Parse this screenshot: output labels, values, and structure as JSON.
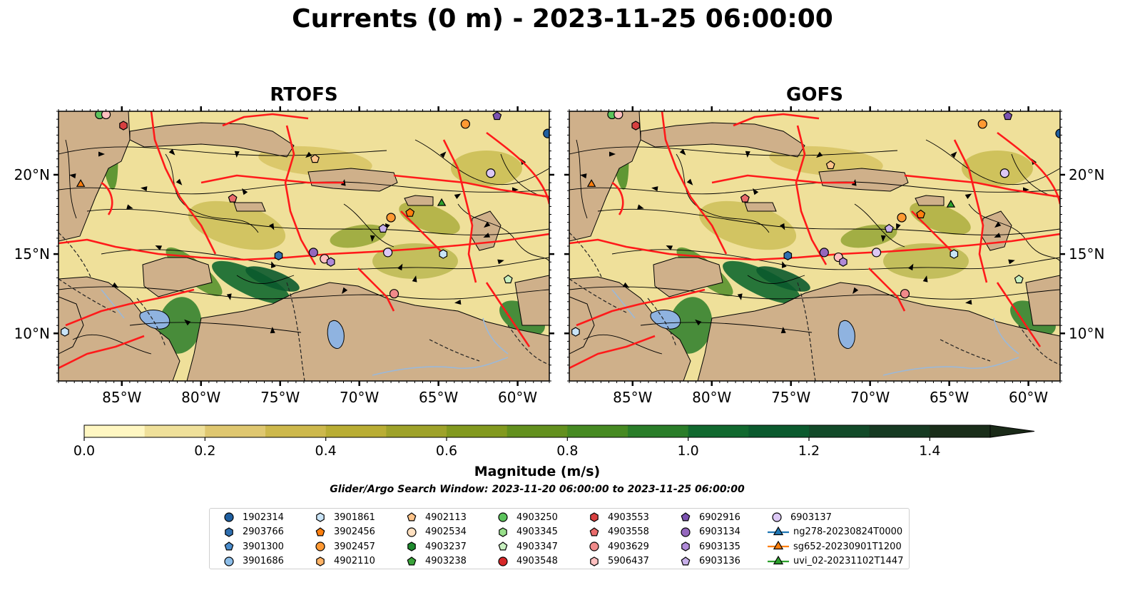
{
  "title": "Currents (0 m) - 2023-11-25 06:00:00",
  "panels": [
    {
      "id": "rtofs",
      "title": "RTOFS",
      "ylabels_side": "left"
    },
    {
      "id": "gofs",
      "title": "GOFS",
      "ylabels_side": "right"
    }
  ],
  "map_extent": {
    "lon": [
      -89,
      -58
    ],
    "lat": [
      7,
      24
    ]
  },
  "lon_ticks": [
    {
      "lon": -85,
      "label": "85°W"
    },
    {
      "lon": -80,
      "label": "80°W"
    },
    {
      "lon": -75,
      "label": "75°W"
    },
    {
      "lon": -70,
      "label": "70°W"
    },
    {
      "lon": -65,
      "label": "65°W"
    },
    {
      "lon": -60,
      "label": "60°W"
    }
  ],
  "lat_ticks": [
    {
      "lat": 20,
      "label": "20°N"
    },
    {
      "lat": 15,
      "label": "15°N"
    },
    {
      "lat": 10,
      "label": "10°N"
    }
  ],
  "colorbar": {
    "label": "Magnitude (m/s)",
    "min": 0.0,
    "max": 1.5,
    "extend": "max",
    "ticks": [
      {
        "value": 0.0,
        "label": "0.0"
      },
      {
        "value": 0.2,
        "label": "0.2"
      },
      {
        "value": 0.4,
        "label": "0.4"
      },
      {
        "value": 0.6,
        "label": "0.6"
      },
      {
        "value": 0.8,
        "label": "0.8"
      },
      {
        "value": 1.0,
        "label": "1.0"
      },
      {
        "value": 1.2,
        "label": "1.2"
      },
      {
        "value": 1.4,
        "label": "1.4"
      }
    ],
    "colors": [
      "#fff7c2",
      "#efe09a",
      "#dfc770",
      "#cdb84c",
      "#b9ad34",
      "#9ea22a",
      "#82991f",
      "#63901e",
      "#468a22",
      "#2a7d29",
      "#11692f",
      "#0b5a2e",
      "#124a29",
      "#163a22",
      "#1a2e1a"
    ],
    "extend_color": "#1a2a18"
  },
  "search_window_text": "Glider/Argo Search Window: 2023-11-20 06:00:00 to 2023-11-25 06:00:00",
  "colors": {
    "land": "#cfb08a",
    "track": "#ff1a1a",
    "lake": "#8fb3e0",
    "river": "#9bb8d8",
    "border": "#222222"
  },
  "legend": [
    {
      "label": "1902314",
      "marker": "circle",
      "color": "#1f5fa0"
    },
    {
      "label": "2903766",
      "marker": "hexagon",
      "color": "#2f6fb0"
    },
    {
      "label": "3901300",
      "marker": "pentagon",
      "color": "#4a8ccc"
    },
    {
      "label": "3901686",
      "marker": "circle",
      "color": "#8cbde8"
    },
    {
      "label": "3901861",
      "marker": "hexagon",
      "color": "#c9e4f7"
    },
    {
      "label": "3902456",
      "marker": "pentagon",
      "color": "#ff7f0e"
    },
    {
      "label": "3902457",
      "marker": "circle",
      "color": "#ff9933"
    },
    {
      "label": "4902110",
      "marker": "hexagon",
      "color": "#ffb366"
    },
    {
      "label": "4902113",
      "marker": "pentagon",
      "color": "#ffc48a"
    },
    {
      "label": "4902534",
      "marker": "circle",
      "color": "#ffe0c0"
    },
    {
      "label": "4903237",
      "marker": "hexagon",
      "color": "#1e8a2e"
    },
    {
      "label": "4903238",
      "marker": "pentagon",
      "color": "#3aa43a"
    },
    {
      "label": "4903250",
      "marker": "circle",
      "color": "#5cc35c"
    },
    {
      "label": "4903345",
      "marker": "hexagon",
      "color": "#98df8a"
    },
    {
      "label": "4903347",
      "marker": "pentagon",
      "color": "#c8f0c0"
    },
    {
      "label": "4903548",
      "marker": "circle",
      "color": "#d62728"
    },
    {
      "label": "4903553",
      "marker": "hexagon",
      "color": "#d84040"
    },
    {
      "label": "4903558",
      "marker": "pentagon",
      "color": "#ea6b6b"
    },
    {
      "label": "4903629",
      "marker": "circle",
      "color": "#f08a8a"
    },
    {
      "label": "5906437",
      "marker": "hexagon",
      "color": "#ffc0c0"
    },
    {
      "label": "6902916",
      "marker": "pentagon",
      "color": "#7b52b0"
    },
    {
      "label": "6903134",
      "marker": "circle",
      "color": "#9467bd"
    },
    {
      "label": "6903135",
      "marker": "hexagon",
      "color": "#b08ad8"
    },
    {
      "label": "6903136",
      "marker": "pentagon",
      "color": "#c8b0ea"
    },
    {
      "label": "6903137",
      "marker": "circle",
      "color": "#dcc8f5"
    },
    {
      "label": "ng278-20230824T0000",
      "marker": "triangle",
      "color": "#1f77b4"
    },
    {
      "label": "sg652-20230901T1200",
      "marker": "triangle",
      "color": "#ff7f0e"
    },
    {
      "label": "uvi_02-20231102T1447",
      "marker": "triangle",
      "color": "#2ca02c"
    }
  ],
  "floats_rtofs": [
    {
      "lon": -86.4,
      "lat": 23.8,
      "marker": "circle",
      "color": "#5cc35c"
    },
    {
      "lon": -86.0,
      "lat": 23.8,
      "marker": "circle",
      "color": "#ffc0c0"
    },
    {
      "lon": -84.9,
      "lat": 23.1,
      "marker": "hexagon",
      "color": "#d84040"
    },
    {
      "lon": -87.6,
      "lat": 19.4,
      "marker": "triangle",
      "color": "#ff7f0e"
    },
    {
      "lon": -78.0,
      "lat": 18.5,
      "marker": "pentagon",
      "color": "#ea6b6b"
    },
    {
      "lon": -72.8,
      "lat": 21.0,
      "marker": "pentagon",
      "color": "#ffc48a"
    },
    {
      "lon": -63.3,
      "lat": 23.2,
      "marker": "circle",
      "color": "#ff9933"
    },
    {
      "lon": -61.3,
      "lat": 23.7,
      "marker": "pentagon",
      "color": "#7b52b0"
    },
    {
      "lon": -58.1,
      "lat": 22.6,
      "marker": "circle",
      "color": "#1f5fa0"
    },
    {
      "lon": -61.7,
      "lat": 20.1,
      "marker": "circle",
      "color": "#dcc8f5"
    },
    {
      "lon": -64.8,
      "lat": 18.2,
      "marker": "triangle",
      "color": "#2ca02c"
    },
    {
      "lon": -68.0,
      "lat": 17.3,
      "marker": "circle",
      "color": "#ff9933"
    },
    {
      "lon": -66.8,
      "lat": 17.6,
      "marker": "pentagon",
      "color": "#ff7f0e"
    },
    {
      "lon": -68.5,
      "lat": 16.6,
      "marker": "pentagon",
      "color": "#c8b0ea"
    },
    {
      "lon": -75.1,
      "lat": 14.9,
      "marker": "hexagon",
      "color": "#2f6fb0"
    },
    {
      "lon": -72.9,
      "lat": 15.1,
      "marker": "circle",
      "color": "#9467bd"
    },
    {
      "lon": -72.2,
      "lat": 14.7,
      "marker": "circle",
      "color": "#ffc0c0"
    },
    {
      "lon": -71.8,
      "lat": 14.5,
      "marker": "hexagon",
      "color": "#b08ad8"
    },
    {
      "lon": -68.2,
      "lat": 15.1,
      "marker": "circle",
      "color": "#dcc8f5"
    },
    {
      "lon": -64.7,
      "lat": 15.0,
      "marker": "hexagon",
      "color": "#c9e4f7"
    },
    {
      "lon": -60.6,
      "lat": 13.4,
      "marker": "pentagon",
      "color": "#c8f0c0"
    },
    {
      "lon": -67.8,
      "lat": 12.5,
      "marker": "circle",
      "color": "#f08a8a"
    },
    {
      "lon": -88.6,
      "lat": 10.1,
      "marker": "hexagon",
      "color": "#c9e4f7"
    }
  ],
  "floats_gofs": [
    {
      "lon": -86.3,
      "lat": 23.8,
      "marker": "circle",
      "color": "#5cc35c"
    },
    {
      "lon": -85.9,
      "lat": 23.8,
      "marker": "circle",
      "color": "#ffc0c0"
    },
    {
      "lon": -84.8,
      "lat": 23.1,
      "marker": "hexagon",
      "color": "#d84040"
    },
    {
      "lon": -87.6,
      "lat": 19.4,
      "marker": "triangle",
      "color": "#ff7f0e"
    },
    {
      "lon": -77.9,
      "lat": 18.5,
      "marker": "pentagon",
      "color": "#ea6b6b"
    },
    {
      "lon": -72.5,
      "lat": 20.6,
      "marker": "pentagon",
      "color": "#ffc48a"
    },
    {
      "lon": -62.9,
      "lat": 23.2,
      "marker": "circle",
      "color": "#ff9933"
    },
    {
      "lon": -61.3,
      "lat": 23.7,
      "marker": "pentagon",
      "color": "#7b52b0"
    },
    {
      "lon": -58.0,
      "lat": 22.6,
      "marker": "circle",
      "color": "#1f5fa0"
    },
    {
      "lon": -61.5,
      "lat": 20.1,
      "marker": "circle",
      "color": "#dcc8f5"
    },
    {
      "lon": -64.9,
      "lat": 18.1,
      "marker": "triangle",
      "color": "#2ca02c"
    },
    {
      "lon": -68.0,
      "lat": 17.3,
      "marker": "circle",
      "color": "#ff9933"
    },
    {
      "lon": -66.8,
      "lat": 17.5,
      "marker": "pentagon",
      "color": "#ff7f0e"
    },
    {
      "lon": -68.8,
      "lat": 16.6,
      "marker": "pentagon",
      "color": "#c8b0ea"
    },
    {
      "lon": -75.2,
      "lat": 14.9,
      "marker": "hexagon",
      "color": "#2f6fb0"
    },
    {
      "lon": -72.9,
      "lat": 15.1,
      "marker": "circle",
      "color": "#9467bd"
    },
    {
      "lon": -72.0,
      "lat": 14.8,
      "marker": "circle",
      "color": "#ffc0c0"
    },
    {
      "lon": -71.7,
      "lat": 14.5,
      "marker": "hexagon",
      "color": "#b08ad8"
    },
    {
      "lon": -69.6,
      "lat": 15.1,
      "marker": "circle",
      "color": "#dcc8f5"
    },
    {
      "lon": -64.7,
      "lat": 15.0,
      "marker": "hexagon",
      "color": "#c9e4f7"
    },
    {
      "lon": -60.6,
      "lat": 13.4,
      "marker": "pentagon",
      "color": "#c8f0c0"
    },
    {
      "lon": -67.8,
      "lat": 12.5,
      "marker": "circle",
      "color": "#f08a8a"
    },
    {
      "lon": -88.6,
      "lat": 10.1,
      "marker": "hexagon",
      "color": "#c9e4f7"
    }
  ]
}
